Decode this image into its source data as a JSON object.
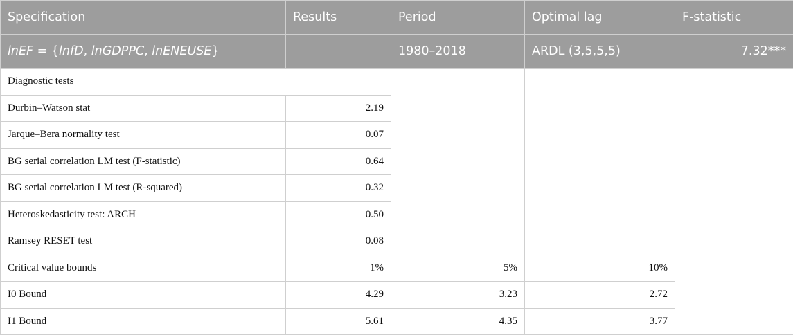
{
  "header": {
    "specification": "Specification",
    "results": "Results",
    "period": "Period",
    "optimal_lag": "Optimal lag",
    "f_statistic": "F-statistic"
  },
  "model_row": {
    "lhs": "lnEF",
    "equals": "=",
    "open_brace": "{",
    "var1": "lnfD",
    "var2": "lnGDPPC",
    "var3": "lnENEUSE",
    "close_brace": "}",
    "comma": ",",
    "results": "",
    "period": "1980–2018",
    "optimal_lag": "ARDL (3,5,5,5)",
    "f_statistic": "7.32***"
  },
  "diagnostics": {
    "title": "Diagnostic tests",
    "tests": [
      {
        "name": "Durbin–Watson stat",
        "value": "2.19"
      },
      {
        "name": "Jarque–Bera normality test",
        "value": "0.07"
      },
      {
        "name": "BG serial correlation LM test (F-statistic)",
        "value": "0.64"
      },
      {
        "name": "BG serial correlation LM test (R-squared)",
        "value": "0.32"
      },
      {
        "name": "Heteroskedasticity test: ARCH",
        "value": "0.50"
      },
      {
        "name": "Ramsey RESET test",
        "value": "0.08"
      }
    ]
  },
  "bounds": {
    "header": {
      "label": "Critical value bounds",
      "c1": "1%",
      "c2": "5%",
      "c3": "10%"
    },
    "rows": [
      {
        "label": "I0 Bound",
        "c1": "4.29",
        "c2": "3.23",
        "c3": "2.72"
      },
      {
        "label": "I1 Bound",
        "c1": "5.61",
        "c2": "4.35",
        "c3": "3.77"
      }
    ]
  }
}
